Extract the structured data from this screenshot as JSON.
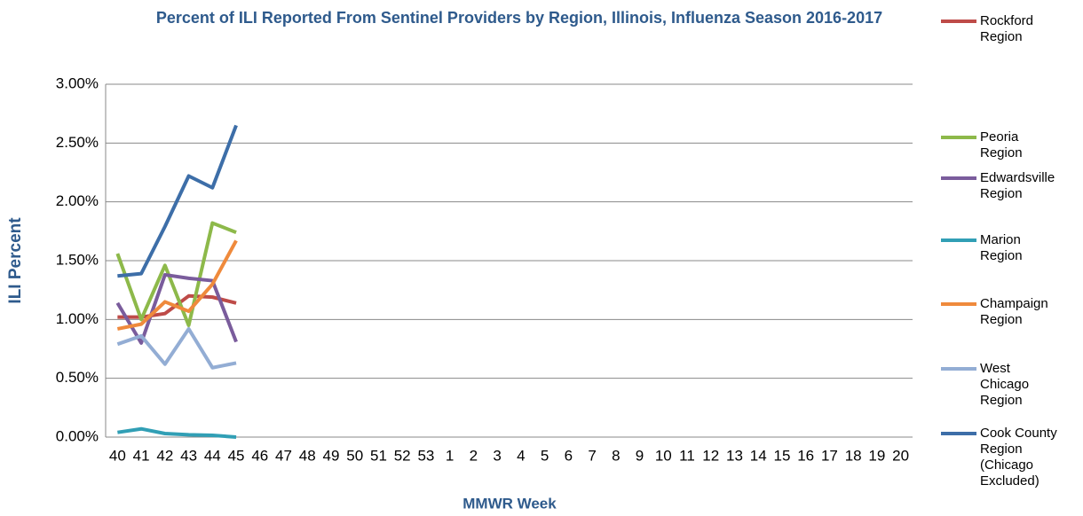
{
  "chart_data": {
    "type": "line",
    "title": "Percent of ILI Reported From Sentinel Providers by Region, Illinois, Influenza Season 2016-2017",
    "x_label": "MMWR Week",
    "y_label": "ILI Percent",
    "categories": [
      "40",
      "41",
      "42",
      "43",
      "44",
      "45",
      "46",
      "47",
      "48",
      "49",
      "50",
      "51",
      "52",
      "53",
      "1",
      "2",
      "3",
      "4",
      "5",
      "6",
      "7",
      "8",
      "9",
      "10",
      "11",
      "12",
      "13",
      "14",
      "15",
      "16",
      "17",
      "18",
      "19",
      "20"
    ],
    "ylim": [
      0,
      3
    ],
    "yticks": [
      {
        "value": 0,
        "label": "0.00%"
      },
      {
        "value": 0.5,
        "label": "0.50%"
      },
      {
        "value": 1,
        "label": "1.00%"
      },
      {
        "value": 1.5,
        "label": "1.50%"
      },
      {
        "value": 2,
        "label": "2.00%"
      },
      {
        "value": 2.5,
        "label": "2.50%"
      },
      {
        "value": 3,
        "label": "3.00%"
      }
    ],
    "grid": true,
    "legend": "right",
    "series": [
      {
        "name": "Rockford Region",
        "color": "#be4b48",
        "values": [
          1.02,
          1.02,
          1.05,
          1.2,
          1.19,
          1.14,
          null,
          null,
          null,
          null,
          null,
          null,
          null,
          null,
          null,
          null,
          null,
          null,
          null,
          null,
          null,
          null,
          null,
          null,
          null,
          null,
          null,
          null,
          null,
          null,
          null,
          null,
          null,
          null
        ]
      },
      {
        "name": "Peoria Region",
        "color": "#8db94a",
        "values": [
          1.56,
          1.0,
          1.46,
          0.95,
          1.82,
          1.74,
          null,
          null,
          null,
          null,
          null,
          null,
          null,
          null,
          null,
          null,
          null,
          null,
          null,
          null,
          null,
          null,
          null,
          null,
          null,
          null,
          null,
          null,
          null,
          null,
          null,
          null,
          null,
          null
        ]
      },
      {
        "name": "Edwardsville Region",
        "color": "#7a5c9c",
        "values": [
          1.14,
          0.8,
          1.38,
          1.35,
          1.33,
          0.81,
          null,
          null,
          null,
          null,
          null,
          null,
          null,
          null,
          null,
          null,
          null,
          null,
          null,
          null,
          null,
          null,
          null,
          null,
          null,
          null,
          null,
          null,
          null,
          null,
          null,
          null,
          null,
          null
        ]
      },
      {
        "name": "Marion Region",
        "color": "#319fb5",
        "values": [
          0.04,
          0.07,
          0.03,
          0.02,
          0.015,
          0.0,
          null,
          null,
          null,
          null,
          null,
          null,
          null,
          null,
          null,
          null,
          null,
          null,
          null,
          null,
          null,
          null,
          null,
          null,
          null,
          null,
          null,
          null,
          null,
          null,
          null,
          null,
          null,
          null
        ]
      },
      {
        "name": "Champaign Region",
        "color": "#ef8a3c",
        "values": [
          0.92,
          0.96,
          1.15,
          1.07,
          1.3,
          1.67,
          null,
          null,
          null,
          null,
          null,
          null,
          null,
          null,
          null,
          null,
          null,
          null,
          null,
          null,
          null,
          null,
          null,
          null,
          null,
          null,
          null,
          null,
          null,
          null,
          null,
          null,
          null,
          null
        ]
      },
      {
        "name": "West Chicago Region",
        "color": "#93add4",
        "values": [
          0.79,
          0.86,
          0.62,
          0.92,
          0.59,
          0.63,
          null,
          null,
          null,
          null,
          null,
          null,
          null,
          null,
          null,
          null,
          null,
          null,
          null,
          null,
          null,
          null,
          null,
          null,
          null,
          null,
          null,
          null,
          null,
          null,
          null,
          null,
          null,
          null
        ]
      },
      {
        "name": "Cook County Region (Chicago Excluded)",
        "color": "#3d6ea8",
        "values": [
          1.37,
          1.39,
          1.79,
          2.22,
          2.12,
          2.65,
          null,
          null,
          null,
          null,
          null,
          null,
          null,
          null,
          null,
          null,
          null,
          null,
          null,
          null,
          null,
          null,
          null,
          null,
          null,
          null,
          null,
          null,
          null,
          null,
          null,
          null,
          null,
          null
        ]
      }
    ]
  }
}
